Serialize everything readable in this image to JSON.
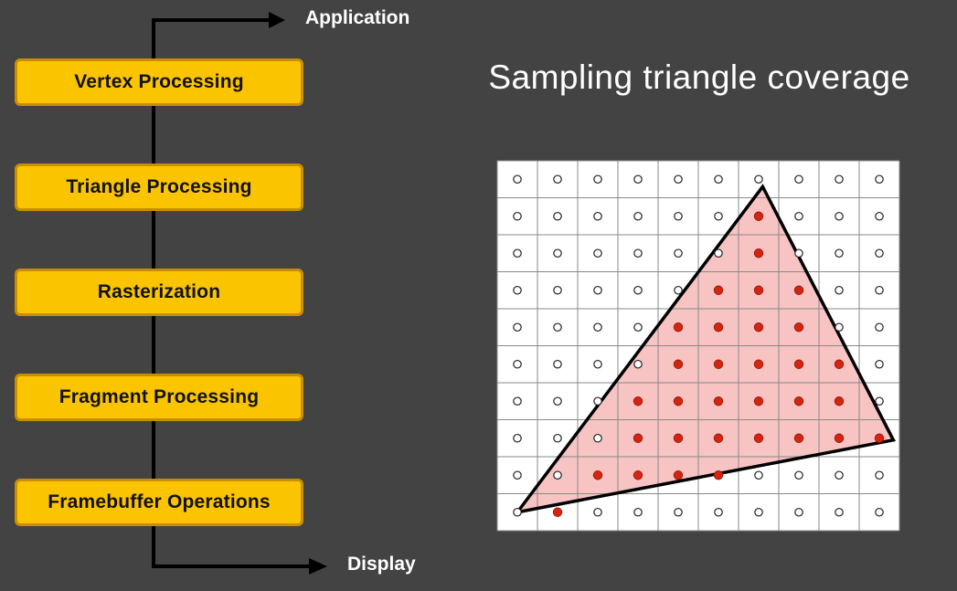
{
  "pipeline": {
    "input_label": "Application",
    "output_label": "Display",
    "stages": [
      "Vertex Processing",
      "Triangle Processing",
      "Rasterization",
      "Fragment Processing",
      "Framebuffer Operations"
    ]
  },
  "slide": {
    "title": "Sampling triangle coverage"
  },
  "grid": {
    "columns": 10,
    "rows": 10,
    "sample_covered_color": "#d6240f",
    "sample_uncovered_color": "#ffffff",
    "triangle_fill": "#f7c3c3",
    "triangle_stroke": "#000000",
    "triangle_vertices": [
      [
        6.6,
        0.7
      ],
      [
        0.5,
        9.5
      ],
      [
        9.85,
        7.55
      ]
    ],
    "covered_samples": [
      [
        6,
        1
      ],
      [
        6,
        2
      ],
      [
        5,
        3
      ],
      [
        6,
        3
      ],
      [
        7,
        3
      ],
      [
        4,
        4
      ],
      [
        5,
        4
      ],
      [
        6,
        4
      ],
      [
        7,
        4
      ],
      [
        4,
        5
      ],
      [
        5,
        5
      ],
      [
        6,
        5
      ],
      [
        7,
        5
      ],
      [
        8,
        5
      ],
      [
        3,
        6
      ],
      [
        4,
        6
      ],
      [
        5,
        6
      ],
      [
        6,
        6
      ],
      [
        7,
        6
      ],
      [
        8,
        6
      ],
      [
        3,
        7
      ],
      [
        4,
        7
      ],
      [
        5,
        7
      ],
      [
        6,
        7
      ],
      [
        7,
        7
      ],
      [
        8,
        7
      ],
      [
        9,
        7
      ],
      [
        2,
        8
      ],
      [
        3,
        8
      ],
      [
        4,
        8
      ],
      [
        5,
        8
      ],
      [
        1,
        9
      ]
    ]
  },
  "colors": {
    "background": "#434343",
    "stage_fill": "#fbc400",
    "stage_border": "#c88e00"
  }
}
